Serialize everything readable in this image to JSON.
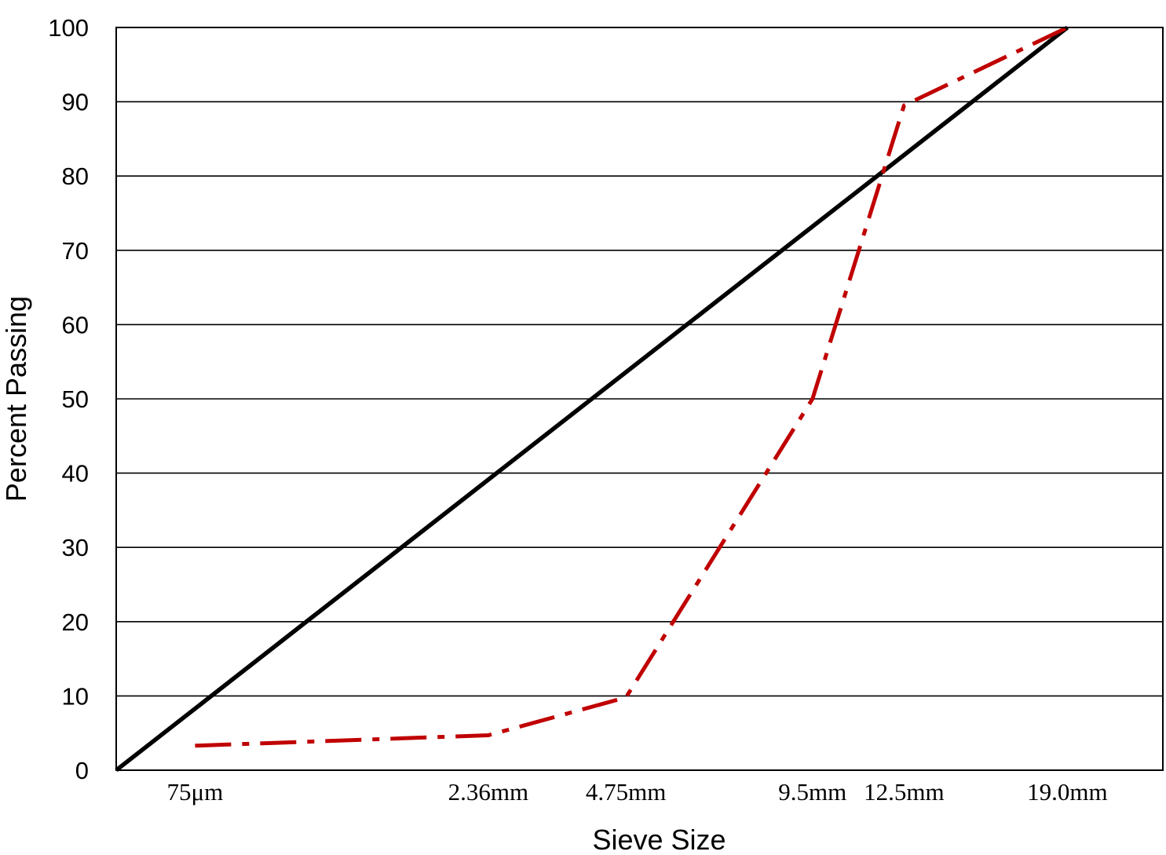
{
  "chart_data": {
    "type": "line",
    "title": "",
    "xlabel": "Sieve Size",
    "ylabel": "Percent Passing",
    "ylim": [
      0,
      100
    ],
    "yticks": [
      0,
      10,
      20,
      30,
      40,
      50,
      60,
      70,
      80,
      90,
      100
    ],
    "x_scale": "power 0.45 (sieve size in mm)",
    "xlim_mm": [
      0,
      23.5
    ],
    "categories": [
      {
        "label": "75μm",
        "size_mm": 0.075
      },
      {
        "label": "2.36mm",
        "size_mm": 2.36
      },
      {
        "label": "4.75mm",
        "size_mm": 4.75
      },
      {
        "label": "9.5mm",
        "size_mm": 9.5
      },
      {
        "label": "12.5mm",
        "size_mm": 12.5
      },
      {
        "label": "19.0mm",
        "size_mm": 19.0
      }
    ],
    "grid": {
      "horizontal": true,
      "vertical": false
    },
    "series": [
      {
        "style": "solid",
        "color": "#000000",
        "points": [
          {
            "size_mm": 0,
            "y": 0
          },
          {
            "size_mm": 19.0,
            "y": 100
          }
        ]
      },
      {
        "style": "dash-dot",
        "color": "#C00000",
        "points": [
          {
            "size_mm": 0.075,
            "y": 3.3
          },
          {
            "size_mm": 2.36,
            "y": 4.7
          },
          {
            "size_mm": 4.75,
            "y": 9.8
          },
          {
            "size_mm": 9.5,
            "y": 50
          },
          {
            "size_mm": 12.5,
            "y": 89.5
          },
          {
            "size_mm": 19.0,
            "y": 100
          }
        ]
      }
    ]
  }
}
